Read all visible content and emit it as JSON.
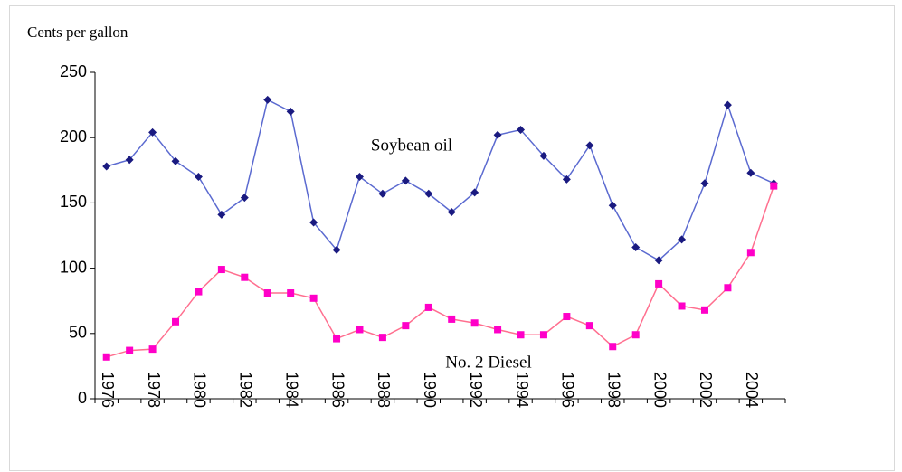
{
  "chart_data": {
    "type": "line",
    "y_label": "Cents per gallon",
    "categories": [
      "1976",
      null,
      "1978",
      null,
      "1980",
      null,
      "1982",
      null,
      "1984",
      null,
      "1986",
      null,
      "1988",
      null,
      "1990",
      null,
      "1992",
      null,
      "1994",
      null,
      "1996",
      null,
      "1998",
      null,
      "2000",
      null,
      "2002",
      null,
      "2004",
      null
    ],
    "series": [
      {
        "name": "Soybean oil",
        "color": "#5b6ad0",
        "marker_color": "#1a1a80",
        "values": [
          178,
          183,
          204,
          182,
          170,
          141,
          154,
          229,
          220,
          135,
          114,
          170,
          157,
          167,
          157,
          143,
          158,
          202,
          206,
          186,
          168,
          194,
          148,
          116,
          106,
          122,
          165,
          225,
          173,
          165
        ]
      },
      {
        "name": "No. 2 Diesel",
        "color": "#ff6f8f",
        "marker_color": "#ff00c8",
        "values": [
          32,
          37,
          38,
          59,
          82,
          99,
          93,
          81,
          81,
          77,
          46,
          53,
          47,
          56,
          70,
          61,
          58,
          53,
          49,
          49,
          63,
          56,
          40,
          49,
          88,
          71,
          68,
          85,
          112,
          163
        ]
      }
    ],
    "ylim": [
      0,
      250
    ],
    "yticks": [
      0,
      50,
      100,
      150,
      200,
      250
    ],
    "grid": false
  }
}
